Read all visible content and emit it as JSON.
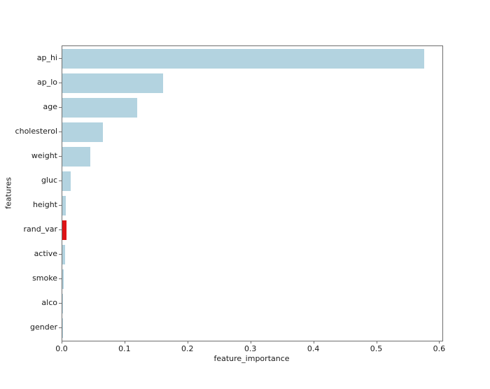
{
  "figure": {
    "background": "#ffffff"
  },
  "chart_data": {
    "type": "bar",
    "orientation": "horizontal",
    "title": "",
    "xlabel": "feature_importance",
    "ylabel": "features",
    "categories": [
      "ap_hi",
      "ap_lo",
      "age",
      "cholesterol",
      "weight",
      "gluc",
      "height",
      "rand_var",
      "active",
      "smoke",
      "alco",
      "gender"
    ],
    "values": [
      0.575,
      0.16,
      0.119,
      0.064,
      0.045,
      0.013,
      0.006,
      0.0065,
      0.005,
      0.002,
      0.0015,
      0.0008
    ],
    "highlighted_category": "rand_var",
    "xlim": [
      0,
      0.604
    ],
    "xticks": [
      0.0,
      0.1,
      0.2,
      0.3,
      0.4,
      0.5,
      0.6
    ],
    "xtick_labels": [
      "0.0",
      "0.1",
      "0.2",
      "0.3",
      "0.4",
      "0.5",
      "0.6"
    ],
    "grid": false,
    "legend": null
  },
  "colors": {
    "bar_default": "#b3d3e0",
    "bar_highlight": "#dd1416",
    "spine": "#6e6e6e",
    "text": "#1a1a1a"
  }
}
